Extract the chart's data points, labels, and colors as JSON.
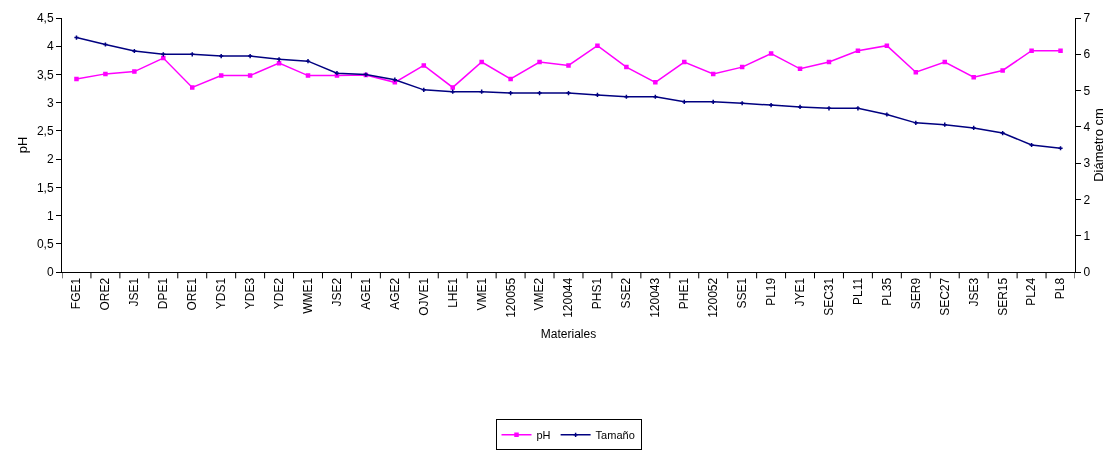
{
  "chart_data": {
    "type": "line",
    "xlabel": "Materiales",
    "ylabel": "pH",
    "y2label": "Diámetro cm",
    "categories": [
      "FGE1",
      "ORE2",
      "JSE1",
      "DPE1",
      "ORE1",
      "YDS1",
      "YDE3",
      "YDE2",
      "WME1",
      "JSE2",
      "AGE1",
      "AGE2",
      "OJVE1",
      "LHE1",
      "VME1",
      "120055",
      "VME2",
      "120044",
      "PHS1",
      "SSE2",
      "120043",
      "PHE1",
      "120052",
      "SSE1",
      "PL19",
      "JYE1",
      "SEC31",
      "PL11",
      "PL35",
      "SER9",
      "SEC27",
      "JSE3",
      "SER15",
      "PL24",
      "PL8"
    ],
    "series": [
      {
        "name": "pH",
        "color": "#ff00ff",
        "marker": "square",
        "values": [
          3.42,
          3.51,
          3.55,
          3.79,
          3.27,
          3.48,
          3.48,
          3.7,
          3.48,
          3.48,
          3.49,
          3.36,
          3.66,
          3.27,
          3.72,
          3.42,
          3.72,
          3.66,
          4.01,
          3.63,
          3.36,
          3.72,
          3.51,
          3.63,
          3.87,
          3.6,
          3.72,
          3.92,
          4.01,
          3.54,
          3.72,
          3.45,
          3.57,
          3.92,
          3.92
        ]
      },
      {
        "name": "Tamaño",
        "color": "#000080",
        "marker": "cross",
        "axis": "y2",
        "values": [
          6.46,
          6.27,
          6.09,
          6.0,
          6.0,
          5.95,
          5.95,
          5.86,
          5.81,
          5.48,
          5.44,
          5.3,
          5.02,
          4.97,
          4.97,
          4.93,
          4.93,
          4.93,
          4.88,
          4.83,
          4.83,
          4.69,
          4.69,
          4.65,
          4.6,
          4.55,
          4.51,
          4.51,
          4.34,
          4.11,
          4.06,
          3.97,
          3.83,
          3.5,
          3.41
        ]
      }
    ],
    "ylim": [
      0,
      4.5
    ],
    "yticks": [
      0,
      {
        "value": 0.5,
        "label": "0,5"
      },
      1,
      {
        "value": 1.5,
        "label": "1,5"
      },
      2,
      {
        "value": 2.5,
        "label": "2,5"
      },
      3,
      {
        "value": 3.5,
        "label": "3,5"
      },
      4,
      {
        "value": 4.5,
        "label": "4,5"
      }
    ],
    "y2lim": [
      0,
      7
    ],
    "y2ticks": [
      0,
      1,
      2,
      3,
      4,
      5,
      6,
      7
    ],
    "legend": "bottom",
    "line_style": "solid"
  }
}
